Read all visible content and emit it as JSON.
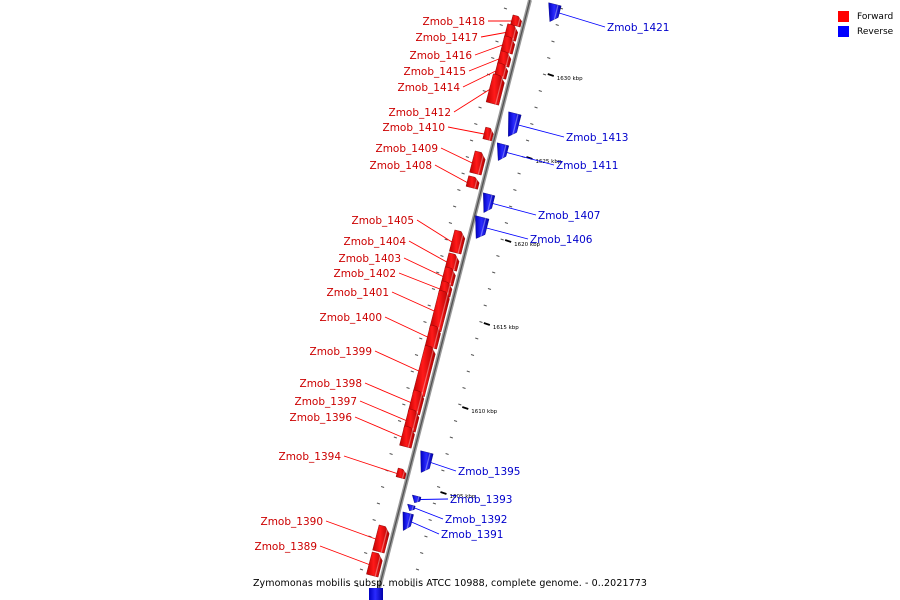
{
  "legend": {
    "forward_label": "Forward",
    "forward_color": "#ff0000",
    "reverse_label": "Reverse",
    "reverse_color": "#0000ff"
  },
  "caption": "Zymomonas mobilis subsp. mobilis ATCC 10988, complete genome. - 0..2021773",
  "ticks": [
    "1605 kbp",
    "1610 kbp",
    "1615 kbp",
    "1620 kbp",
    "1625 kbp",
    "1630 kbp"
  ],
  "genes_forward": [
    "Zmob_1418",
    "Zmob_1417",
    "Zmob_1416",
    "Zmob_1415",
    "Zmob_1414",
    "Zmob_1412",
    "Zmob_1410",
    "Zmob_1409",
    "Zmob_1408",
    "Zmob_1405",
    "Zmob_1404",
    "Zmob_1403",
    "Zmob_1402",
    "Zmob_1401",
    "Zmob_1400",
    "Zmob_1399",
    "Zmob_1398",
    "Zmob_1397",
    "Zmob_1396",
    "Zmob_1394",
    "Zmob_1390",
    "Zmob_1389"
  ],
  "genes_reverse": [
    "Zmob_1421",
    "Zmob_1413",
    "Zmob_1411",
    "Zmob_1407",
    "Zmob_1406",
    "Zmob_1395",
    "Zmob_1393",
    "Zmob_1392",
    "Zmob_1391"
  ]
}
